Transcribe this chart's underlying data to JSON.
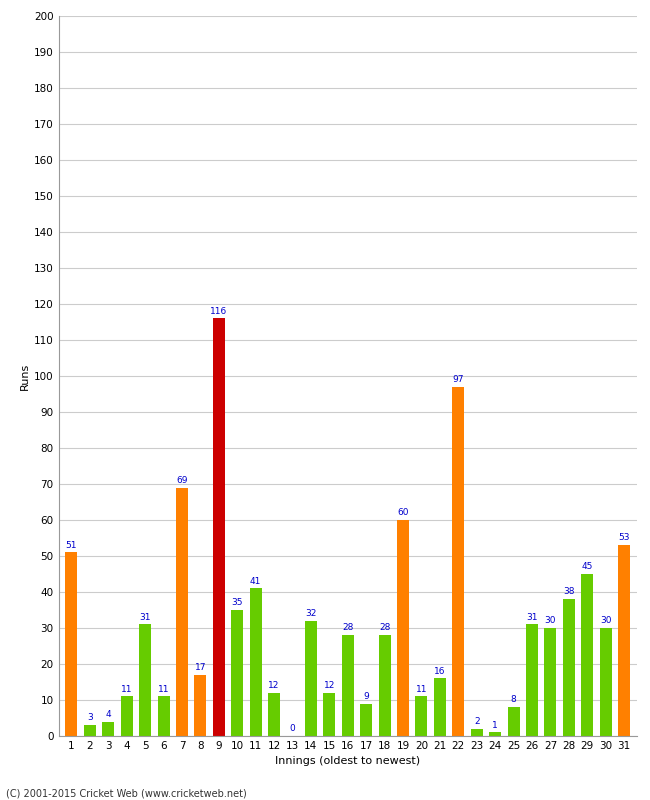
{
  "xlabel": "Innings (oldest to newest)",
  "ylabel": "Runs",
  "ylim": [
    0,
    200
  ],
  "yticks": [
    0,
    10,
    20,
    30,
    40,
    50,
    60,
    70,
    80,
    90,
    100,
    110,
    120,
    130,
    140,
    150,
    160,
    170,
    180,
    190,
    200
  ],
  "innings": [
    1,
    2,
    3,
    4,
    5,
    6,
    7,
    8,
    9,
    10,
    11,
    12,
    13,
    14,
    15,
    16,
    17,
    18,
    19,
    20,
    21,
    22,
    23,
    24,
    25,
    26,
    27,
    28,
    29,
    30,
    31
  ],
  "values": [
    51,
    3,
    4,
    11,
    31,
    11,
    69,
    17,
    116,
    35,
    41,
    12,
    0,
    32,
    12,
    28,
    9,
    28,
    60,
    11,
    16,
    97,
    2,
    1,
    8,
    31,
    30,
    38,
    45,
    30,
    53
  ],
  "colors": [
    "#ff8000",
    "#66cc00",
    "#66cc00",
    "#66cc00",
    "#66cc00",
    "#66cc00",
    "#ff8000",
    "#ff8000",
    "#cc0000",
    "#66cc00",
    "#66cc00",
    "#66cc00",
    "#66cc00",
    "#66cc00",
    "#66cc00",
    "#66cc00",
    "#66cc00",
    "#66cc00",
    "#ff8000",
    "#66cc00",
    "#66cc00",
    "#ff8000",
    "#66cc00",
    "#66cc00",
    "#66cc00",
    "#66cc00",
    "#66cc00",
    "#66cc00",
    "#66cc00",
    "#66cc00",
    "#ff8000"
  ],
  "label_color": "#0000cc",
  "label_fontsize": 6.5,
  "axis_fontsize": 7.5,
  "ylabel_fontsize": 8,
  "xlabel_fontsize": 8,
  "background_color": "#ffffff",
  "plot_bg_color": "#ffffff",
  "footer": "(C) 2001-2015 Cricket Web (www.cricketweb.net)",
  "footer_fontsize": 7,
  "bar_width": 0.65,
  "grid_color": "#cccccc"
}
